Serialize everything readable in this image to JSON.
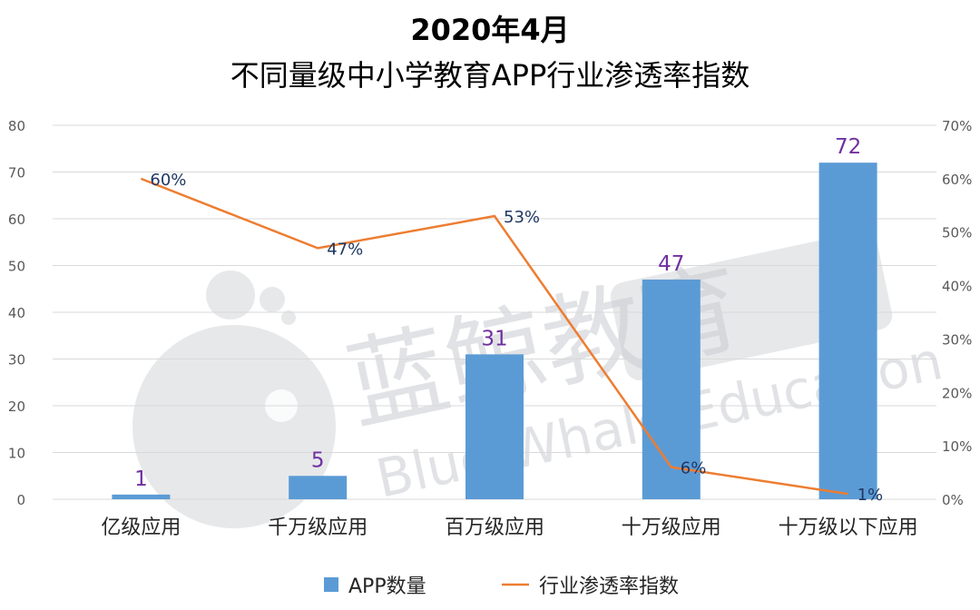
{
  "title_line1": "2020年4月",
  "title_line2": "不同量级中小学教育APP行业渗透率指数",
  "watermark": {
    "cn_text": "蓝鲸教育",
    "en_text": "Blue Whale Education"
  },
  "colors": {
    "bar": "#5B9BD5",
    "line": "#ED7D31",
    "bar_label": "#7030A0",
    "line_label": "#1F3864",
    "grid": "#D9D9D9",
    "axis_text": "#595959",
    "watermark": "#C9CCD1"
  },
  "chart_data": {
    "type": "bar",
    "categories": [
      "亿级应用",
      "千万级应用",
      "百万级应用",
      "十万级应用",
      "十万级以下应用"
    ],
    "series": [
      {
        "name": "APP数量",
        "type": "bar",
        "axis": "left",
        "values": [
          1,
          5,
          31,
          47,
          72
        ],
        "labels": [
          "1",
          "5",
          "31",
          "47",
          "72"
        ]
      },
      {
        "name": "行业渗透率指数",
        "type": "line",
        "axis": "right",
        "values": [
          60,
          47,
          53,
          6,
          1
        ],
        "labels": [
          "60%",
          "47%",
          "53%",
          "6%",
          "1%"
        ]
      }
    ],
    "y_left": {
      "ylim": [
        0,
        80
      ],
      "ticks": [
        "0",
        "10",
        "20",
        "30",
        "40",
        "50",
        "60",
        "70",
        "80"
      ]
    },
    "y_right": {
      "ylim": [
        0,
        70
      ],
      "ticks": [
        "0%",
        "10%",
        "20%",
        "30%",
        "40%",
        "50%",
        "60%",
        "70%"
      ]
    },
    "grid": true,
    "legend_position": "bottom"
  }
}
